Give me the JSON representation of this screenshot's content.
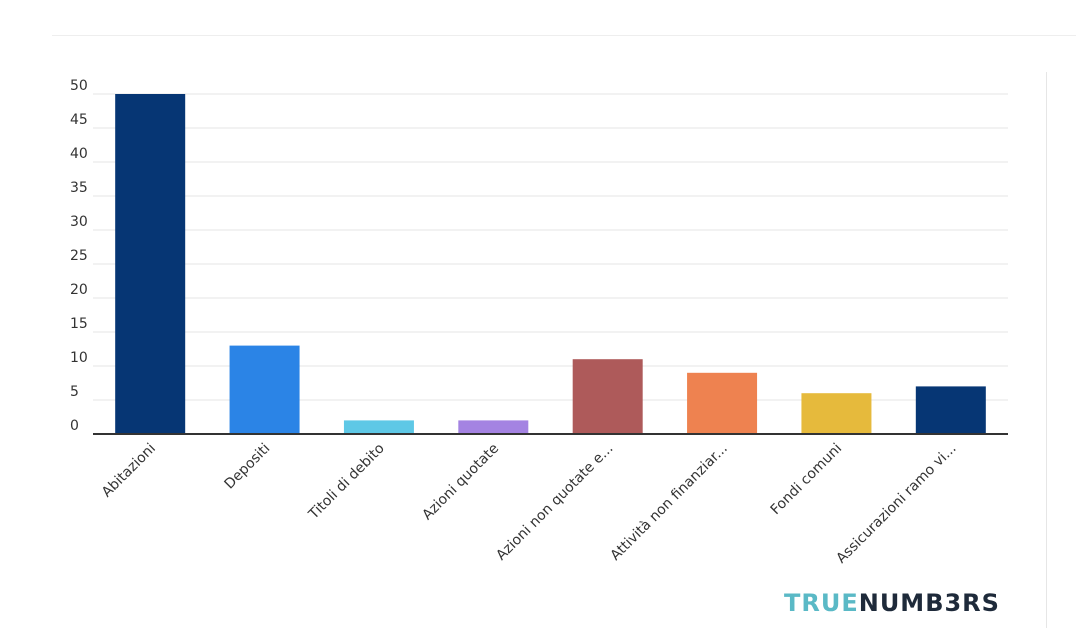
{
  "brand": {
    "part1": "TRUE",
    "part2": "NUMB3RS",
    "colors": {
      "part1": "#5ab9c6",
      "part2": "#1e2a3a"
    }
  },
  "chart_data": {
    "type": "bar",
    "title": "",
    "xlabel": "",
    "ylabel": "",
    "ylim": [
      0,
      50
    ],
    "yticks": [
      0,
      5,
      10,
      15,
      20,
      25,
      30,
      35,
      40,
      45,
      50
    ],
    "grid": true,
    "legend": "none",
    "categories": [
      "Abitazioni",
      "Depositi",
      "Titoli di debito",
      "Azioni quotate",
      "Azioni non quotate e...",
      "Attività non finanziar...",
      "Fondi comuni",
      "Assicurazioni ramo vi..."
    ],
    "values": [
      50,
      13,
      2,
      2,
      11,
      9,
      6,
      7
    ],
    "colors": [
      "#063674",
      "#2b84e6",
      "#5ec8e6",
      "#a483e2",
      "#ae5a5a",
      "#ee8250",
      "#e6ba3c",
      "#063674"
    ]
  }
}
